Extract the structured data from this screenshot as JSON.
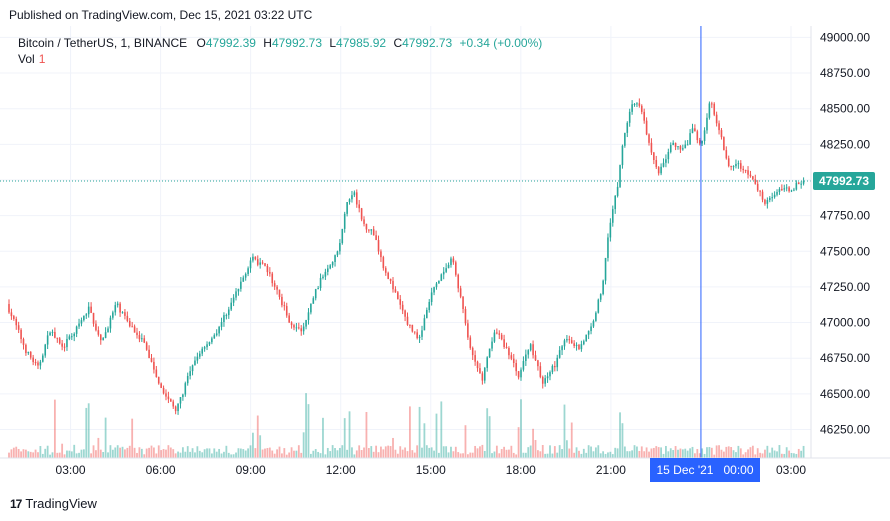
{
  "header": {
    "published": "Published on TradingView.com, Dec 15, 2021 03:22 UTC"
  },
  "legend": {
    "symbol": "Bitcoin / TetherUS, 1, BINANCE",
    "o_label": "O",
    "o_value": "47992.39",
    "h_label": "H",
    "h_value": "47992.73",
    "l_label": "L",
    "l_value": "47985.92",
    "c_label": "C",
    "c_value": "47992.73",
    "change": "+0.34 (+0.00%)",
    "vol_label": "Vol",
    "vol_value": "1"
  },
  "price_tag": "47992.73",
  "crosshair_label": "15 Dec '21   00:00",
  "footer": {
    "brand": "TradingView"
  },
  "colors": {
    "up": "#26a69a",
    "down": "#ef5350",
    "grid": "#f0f3fa",
    "crosshair": "#2962ff"
  },
  "chart_data": {
    "type": "candlestick",
    "symbol": "Bitcoin / TetherUS",
    "interval": "1",
    "exchange": "BINANCE",
    "y_ticks": [
      49000,
      48750,
      48500,
      48250,
      48000,
      47750,
      47500,
      47250,
      47000,
      46750,
      46500,
      46250
    ],
    "ylim": [
      46050,
      49080
    ],
    "x_ticks": [
      "03:00",
      "06:00",
      "09:00",
      "12:00",
      "15:00",
      "18:00",
      "21:00",
      "03:00"
    ],
    "x_tick_hours": [
      3,
      6,
      9,
      12,
      15,
      18,
      21,
      27
    ],
    "x_range_hours": [
      0.95,
      27.5
    ],
    "crosshair_hour": 24,
    "last_price": 47992.73,
    "price_path": [
      [
        0.95,
        47130
      ],
      [
        1.3,
        46960
      ],
      [
        1.6,
        46800
      ],
      [
        2.0,
        46680
      ],
      [
        2.4,
        46950
      ],
      [
        2.8,
        46820
      ],
      [
        3.3,
        46960
      ],
      [
        3.7,
        47100
      ],
      [
        4.1,
        46850
      ],
      [
        4.6,
        47130
      ],
      [
        5.0,
        47000
      ],
      [
        5.5,
        46870
      ],
      [
        5.9,
        46650
      ],
      [
        6.2,
        46500
      ],
      [
        6.6,
        46380
      ],
      [
        7.0,
        46620
      ],
      [
        7.4,
        46800
      ],
      [
        7.9,
        46920
      ],
      [
        8.3,
        47080
      ],
      [
        8.7,
        47250
      ],
      [
        9.1,
        47450
      ],
      [
        9.6,
        47380
      ],
      [
        10.0,
        47200
      ],
      [
        10.4,
        47000
      ],
      [
        10.8,
        46930
      ],
      [
        11.2,
        47200
      ],
      [
        11.6,
        47380
      ],
      [
        12.0,
        47500
      ],
      [
        12.3,
        47850
      ],
      [
        12.55,
        47900
      ],
      [
        12.8,
        47700
      ],
      [
        13.2,
        47620
      ],
      [
        13.5,
        47400
      ],
      [
        13.9,
        47200
      ],
      [
        14.3,
        47000
      ],
      [
        14.7,
        46880
      ],
      [
        15.1,
        47200
      ],
      [
        15.5,
        47350
      ],
      [
        15.8,
        47450
      ],
      [
        16.1,
        47150
      ],
      [
        16.4,
        46800
      ],
      [
        16.8,
        46600
      ],
      [
        17.2,
        46950
      ],
      [
        17.6,
        46820
      ],
      [
        18.0,
        46630
      ],
      [
        18.4,
        46850
      ],
      [
        18.8,
        46580
      ],
      [
        19.2,
        46700
      ],
      [
        19.6,
        46900
      ],
      [
        20.0,
        46820
      ],
      [
        20.4,
        46950
      ],
      [
        20.8,
        47250
      ],
      [
        21.0,
        47650
      ],
      [
        21.3,
        47950
      ],
      [
        21.5,
        48300
      ],
      [
        21.8,
        48550
      ],
      [
        22.1,
        48500
      ],
      [
        22.4,
        48200
      ],
      [
        22.7,
        48050
      ],
      [
        23.1,
        48250
      ],
      [
        23.5,
        48200
      ],
      [
        23.8,
        48350
      ],
      [
        24.1,
        48250
      ],
      [
        24.4,
        48560
      ],
      [
        24.7,
        48350
      ],
      [
        25.0,
        48100
      ],
      [
        25.4,
        48100
      ],
      [
        25.8,
        48000
      ],
      [
        26.2,
        47850
      ],
      [
        26.6,
        47920
      ],
      [
        27.0,
        47930
      ],
      [
        27.5,
        47992
      ]
    ],
    "volume_ylim": [
      0,
      1000
    ]
  }
}
